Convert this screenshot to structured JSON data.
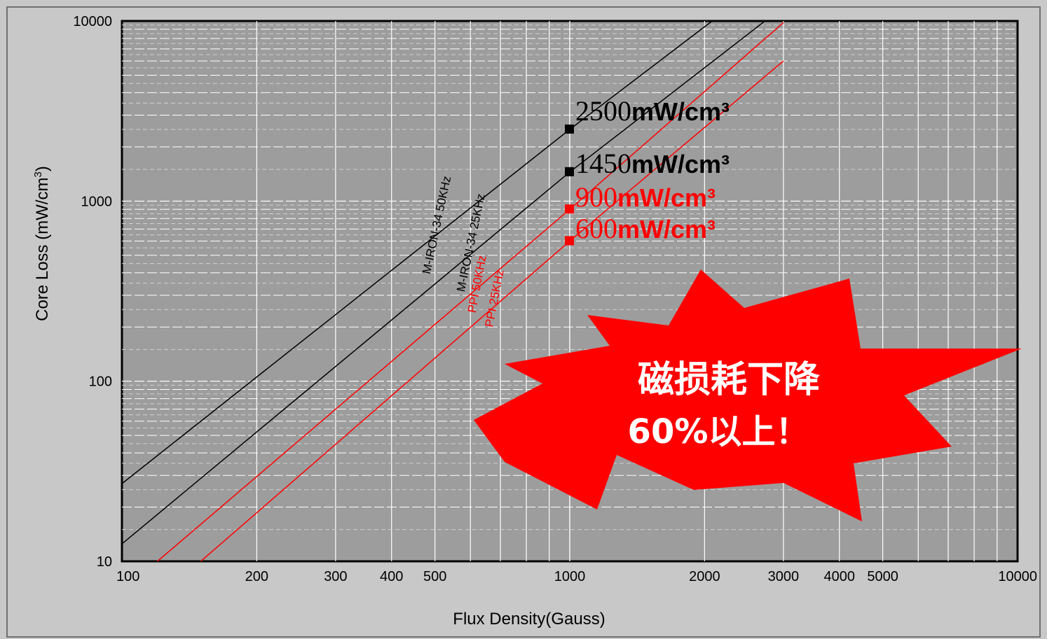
{
  "chart_data": {
    "type": "line",
    "x_scale": "log",
    "y_scale": "log",
    "xlim": [
      100,
      10000
    ],
    "ylim": [
      10,
      10000
    ],
    "xlabel": "Flux Density(Gauss)",
    "ylabel_main": "Core Loss (mW/cm",
    "ylabel_sup": "3",
    "ylabel_close": ")",
    "x_ticks": [
      {
        "value": 100,
        "label": "100"
      },
      {
        "value": 200,
        "label": "200"
      },
      {
        "value": 300,
        "label": "300"
      },
      {
        "value": 400,
        "label": "400"
      },
      {
        "value": 500,
        "label": "500"
      },
      {
        "value": 1000,
        "label": "1000"
      },
      {
        "value": 2000,
        "label": "2000"
      },
      {
        "value": 3000,
        "label": "3000"
      },
      {
        "value": 4000,
        "label": "4000"
      },
      {
        "value": 5000,
        "label": "5000"
      },
      {
        "value": 10000,
        "label": "10000"
      }
    ],
    "y_ticks": [
      {
        "value": 10,
        "label": "10"
      },
      {
        "value": 100,
        "label": "100"
      },
      {
        "value": 1000,
        "label": "1000"
      },
      {
        "value": 10000,
        "label": "10000"
      }
    ],
    "grid": true,
    "series": [
      {
        "name": "M-IRON-34 50KHz",
        "color": "#000000",
        "x": [
          100,
          1000,
          3000
        ],
        "y": [
          27,
          2500,
          20000
        ]
      },
      {
        "name": "M-IRON-34 25KHz",
        "color": "#000000",
        "x": [
          100,
          1000,
          3000
        ],
        "y": [
          12.5,
          1450,
          12000
        ]
      },
      {
        "name": "PPI 50KHz",
        "color": "#ff0000",
        "x": [
          120,
          1000,
          3000
        ],
        "y": [
          10,
          900,
          9800
        ]
      },
      {
        "name": "PPI 25KHz",
        "color": "#ff0000",
        "x": [
          150,
          1000,
          3000
        ],
        "y": [
          10,
          600,
          6000
        ]
      }
    ],
    "annotations": [
      {
        "x": 1000,
        "y": 2500,
        "number": "2500",
        "unit": "mW/cm³",
        "color": "#000000"
      },
      {
        "x": 1000,
        "y": 1450,
        "number": "1450",
        "unit": "mW/cm³",
        "color": "#000000"
      },
      {
        "x": 1000,
        "y": 900,
        "number": "900",
        "unit": "mW/cm³",
        "color": "#ff0000"
      },
      {
        "x": 1000,
        "y": 600,
        "number": "600",
        "unit": "mW/cm³",
        "color": "#ff0000"
      }
    ]
  },
  "callout": {
    "line1": "磁损耗下降",
    "line2": "60%以上！",
    "fill": "#ff0000",
    "text_color": "#ffffff"
  },
  "colors": {
    "window_bg": "#c8c8c8",
    "plot_bg": "#9d9d9d",
    "grid_major": "#ffffff",
    "grid_minor": "#d0d0d0"
  }
}
